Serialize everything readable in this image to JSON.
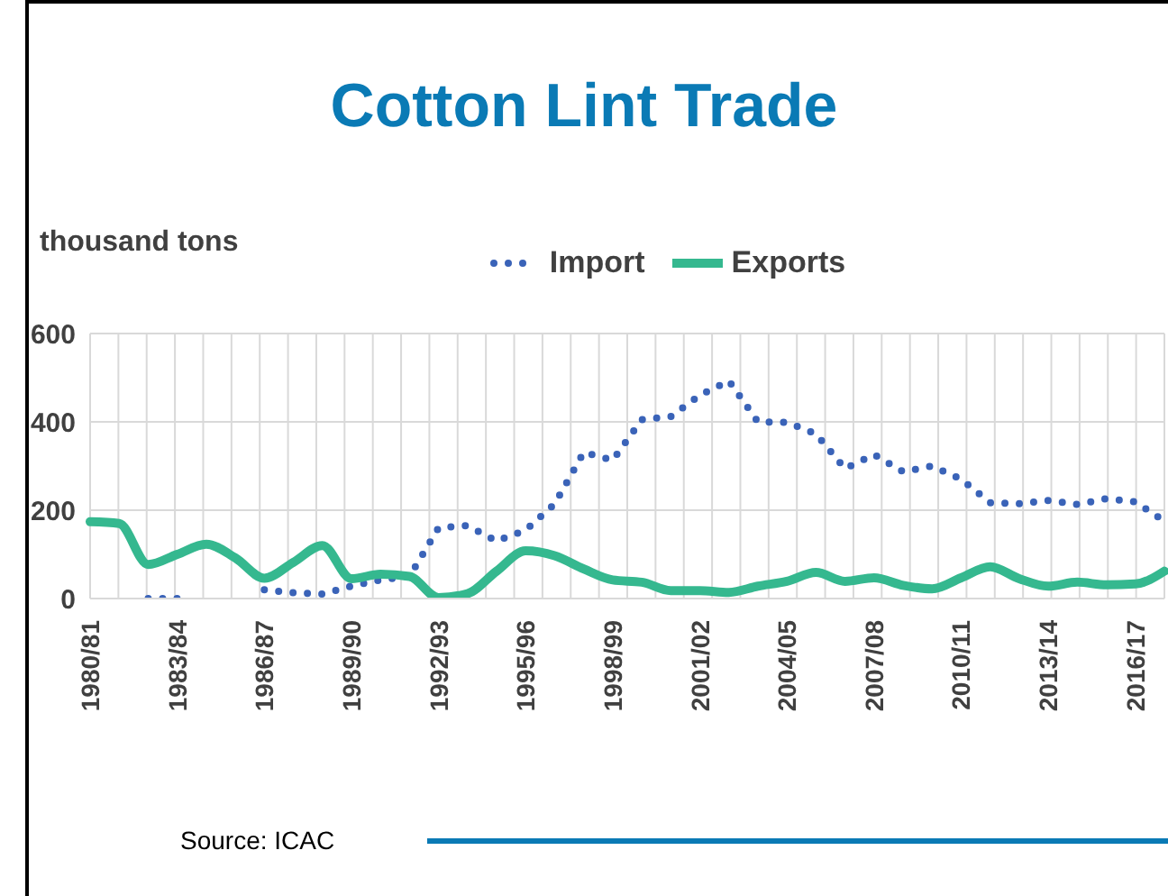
{
  "chart_data": {
    "type": "line",
    "title": "Cotton Lint Trade",
    "ylabel": "thousand tons",
    "categories": [
      "1980/81",
      null,
      null,
      "1983/84",
      null,
      null,
      "1986/87",
      null,
      null,
      "1989/90",
      null,
      null,
      "1992/93",
      null,
      null,
      "1995/96",
      null,
      null,
      "1998/99",
      null,
      null,
      "2001/02",
      null,
      null,
      "2004/05",
      null,
      null,
      "2007/08",
      null,
      null,
      "2010/11",
      null,
      null,
      "2013/14",
      null,
      null,
      "2016/17",
      null
    ],
    "series": [
      {
        "name": "Import",
        "color": "#3a63b8",
        "line_style": "dotted",
        "values": [
          null,
          null,
          0,
          0,
          null,
          null,
          20,
          13,
          10,
          28,
          42,
          50,
          160,
          165,
          130,
          155,
          214,
          331,
          313,
          405,
          412,
          460,
          493,
          400,
          399,
          373,
          294,
          326,
          287,
          300,
          270,
          217,
          215,
          222,
          213,
          226,
          219,
          175
        ]
      },
      {
        "name": "Exports",
        "color": "#35b88f",
        "line_style": "solid",
        "values": [
          174,
          170,
          77,
          100,
          123,
          92,
          46,
          82,
          120,
          45,
          55,
          50,
          2,
          11,
          62,
          108,
          97,
          67,
          42,
          37,
          18,
          18,
          14,
          28,
          39,
          59,
          39,
          47,
          30,
          22,
          47,
          72,
          45,
          28,
          37,
          31,
          33,
          62
        ]
      }
    ],
    "ylim": [
      0,
      600
    ],
    "yticks": [
      0,
      200,
      400,
      600
    ],
    "grid": true,
    "legend": "top",
    "marker": "none",
    "annotations": [
      "Source: ICAC"
    ]
  }
}
